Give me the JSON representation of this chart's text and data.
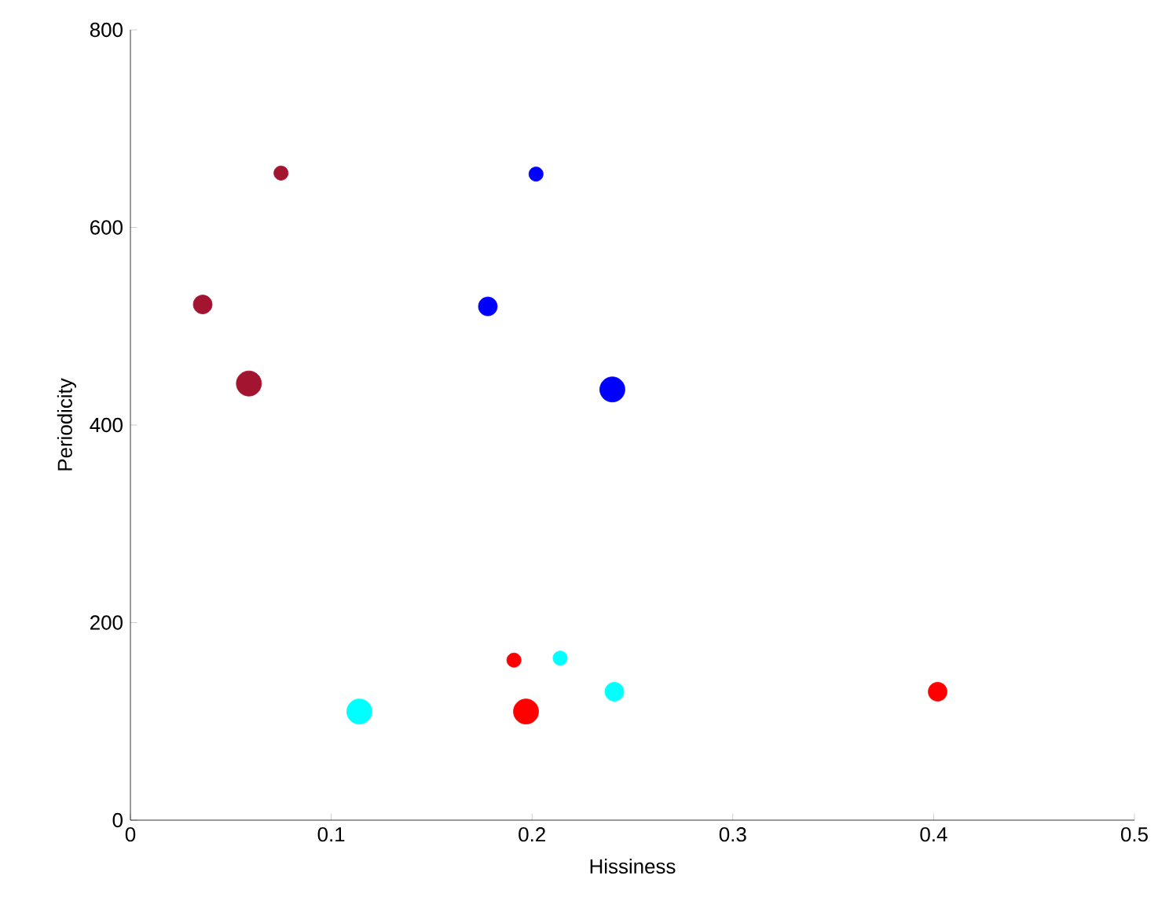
{
  "chart_data": {
    "type": "bubble",
    "xlabel": "Hissiness",
    "ylabel": "Periodicity",
    "xlim": [
      0,
      0.5
    ],
    "ylim": [
      0,
      800
    ],
    "xticks": [
      0,
      0.1,
      0.2,
      0.3,
      0.4,
      0.5
    ],
    "yticks": [
      0,
      200,
      400,
      600,
      800
    ],
    "series": [
      {
        "color": "#a2142f",
        "x": [
          0.036,
          0.059,
          0.075
        ],
        "values": [
          522,
          442,
          655
        ],
        "sizes": [
          0.56,
          1,
          0.32
        ]
      },
      {
        "color": "#0000ff",
        "x": [
          0.202,
          0.178,
          0.24
        ],
        "values": [
          654,
          520,
          436
        ],
        "sizes": [
          0.32,
          0.56,
          1
        ]
      },
      {
        "color": "#ff0000",
        "x": [
          0.191,
          0.197,
          0.402
        ],
        "values": [
          162,
          110,
          130
        ],
        "sizes": [
          0.32,
          1,
          0.56
        ]
      },
      {
        "color": "#00ffff",
        "x": [
          0.214,
          0.241,
          0.114
        ],
        "values": [
          164,
          130,
          110
        ],
        "sizes": [
          0.32,
          0.56,
          1
        ]
      }
    ]
  }
}
